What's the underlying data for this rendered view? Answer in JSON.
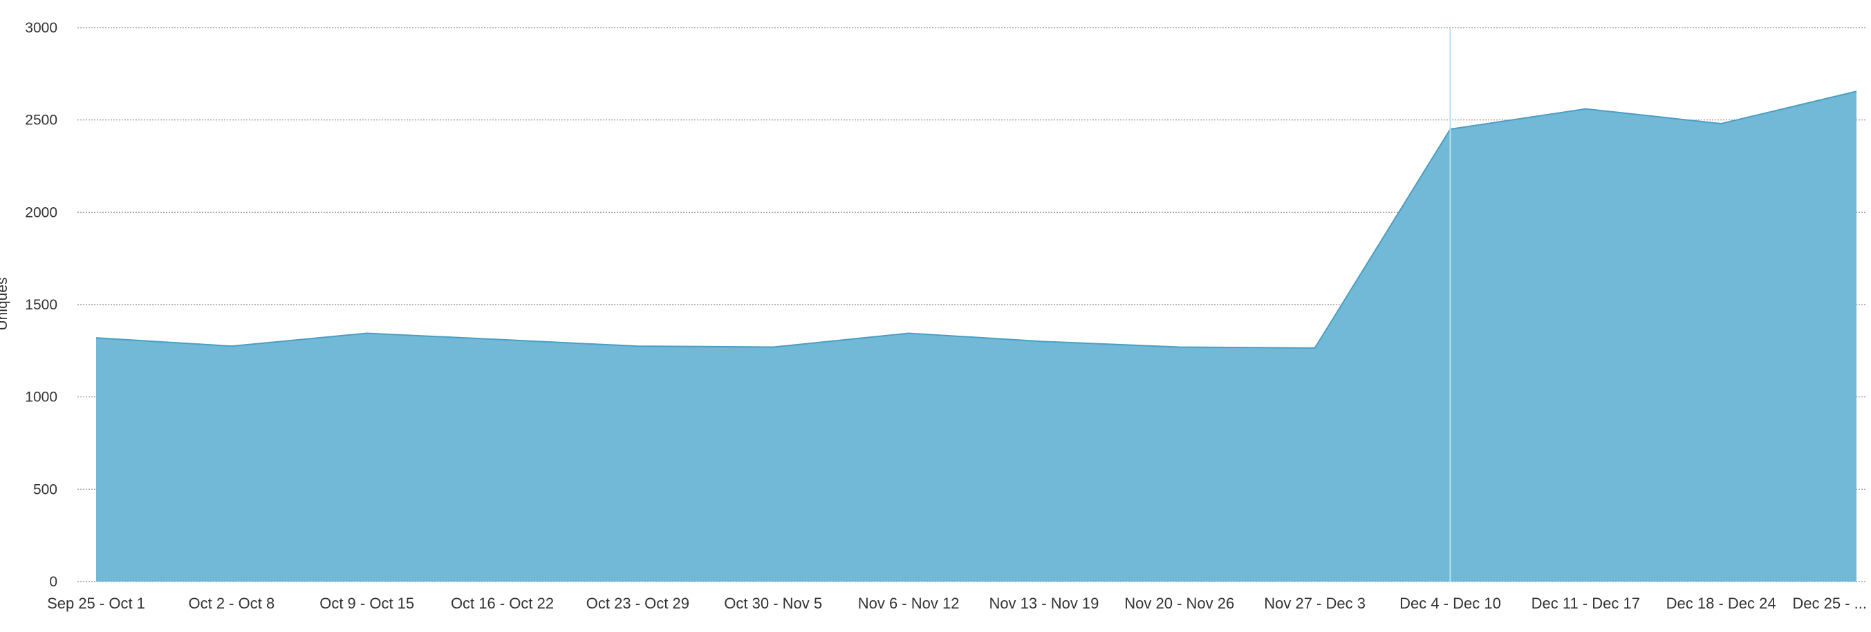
{
  "colors": {
    "area_fill": "#72b9d7",
    "area_line": "#4a9ec3",
    "grid": "#8a8a8a",
    "axis_text": "#333333",
    "marker_line": "#b9e2ea"
  },
  "chart_data": {
    "type": "area",
    "title": "",
    "xlabel": "",
    "ylabel": "Uniques",
    "ylim": [
      0,
      3000
    ],
    "yticks": [
      0,
      500,
      1000,
      1500,
      2000,
      2500,
      3000
    ],
    "grid": true,
    "categories": [
      "Sep 25 - Oct 1",
      "Oct 2 - Oct 8",
      "Oct 9 - Oct 15",
      "Oct 16 - Oct 22",
      "Oct 23 - Oct 29",
      "Oct 30 - Nov 5",
      "Nov 6 - Nov 12",
      "Nov 13 - Nov 19",
      "Nov 20 - Nov 26",
      "Nov 27 - Dec 3",
      "Dec 4 - Dec 10",
      "Dec 11 - Dec 17",
      "Dec 18 - Dec 24",
      "Dec 25 - ..."
    ],
    "series": [
      {
        "values": [
          1320,
          1275,
          1345,
          1310,
          1275,
          1270,
          1345,
          1300,
          1270,
          1265,
          2450,
          2560,
          2480,
          2655
        ]
      }
    ],
    "highlight_category": "Dec 4 - Dec 10"
  }
}
